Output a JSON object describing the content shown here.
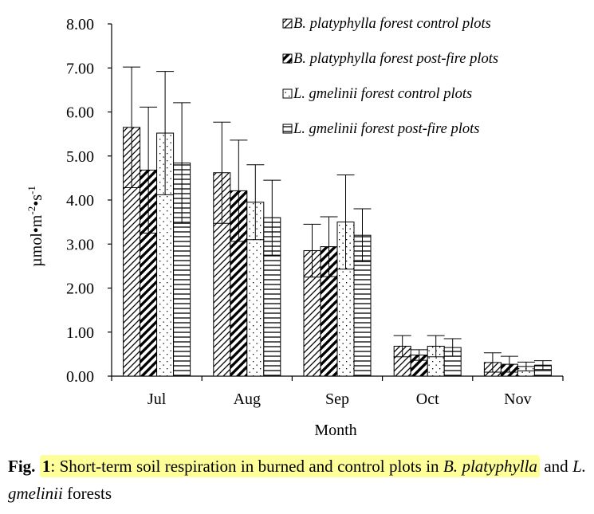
{
  "chart_data": {
    "type": "bar",
    "title": "",
    "xlabel": "Month",
    "ylabel": "µmol•m-2•s-1",
    "ylabel_parts": {
      "base": "µmol•m",
      "exp1": "-2",
      "mid": "•s",
      "exp2": "-1"
    },
    "ylim": [
      0,
      8
    ],
    "yticks": [
      "0.00",
      "1.00",
      "2.00",
      "3.00",
      "4.00",
      "5.00",
      "6.00",
      "7.00",
      "8.00"
    ],
    "grid": false,
    "legend_position": "top-right",
    "categories": [
      "Jul",
      "Aug",
      "Sep",
      "Oct",
      "Nov"
    ],
    "series": [
      {
        "name": "B. platyphylla forest control plots",
        "legend_prefix": "B.",
        "legend_suffix": " platyphylla forest control plots",
        "pattern": "hatch-back",
        "values": [
          5.65,
          4.62,
          2.85,
          0.68,
          0.31
        ],
        "errors": [
          1.37,
          1.15,
          0.6,
          0.24,
          0.22
        ]
      },
      {
        "name": "B. platyphylla forest post-fire plots",
        "legend_prefix": "B.",
        "legend_suffix": " platyphylla forest post-fire plots",
        "pattern": "hatch-thick",
        "values": [
          4.68,
          4.21,
          2.94,
          0.48,
          0.27
        ],
        "errors": [
          1.43,
          1.15,
          0.68,
          0.12,
          0.18
        ]
      },
      {
        "name": "L. gmelinii forest control plots",
        "legend_prefix": "L.",
        "legend_suffix": " gmelinii forest control plots",
        "pattern": "dots",
        "values": [
          5.52,
          3.95,
          3.5,
          0.68,
          0.22
        ],
        "errors": [
          1.4,
          0.85,
          1.07,
          0.24,
          0.1
        ]
      },
      {
        "name": "L. gmelinii forest post-fire plots",
        "legend_prefix": "L.",
        "legend_suffix": " gmelinii forest post-fire plots",
        "pattern": "horizontal",
        "values": [
          4.84,
          3.6,
          3.2,
          0.65,
          0.25
        ],
        "errors": [
          1.37,
          0.85,
          0.6,
          0.2,
          0.1
        ]
      }
    ]
  },
  "caption": {
    "label": "Fig.",
    "number": "1",
    "text_1": ": Short-term soil respiration in burned and control plots in ",
    "species_1": "B. platyphylla",
    "text_2": " and ",
    "species_2": "L. gmelinii",
    "text_3": " forests"
  },
  "colors": {
    "highlight": "#ffff9a",
    "ink": "#000000"
  }
}
